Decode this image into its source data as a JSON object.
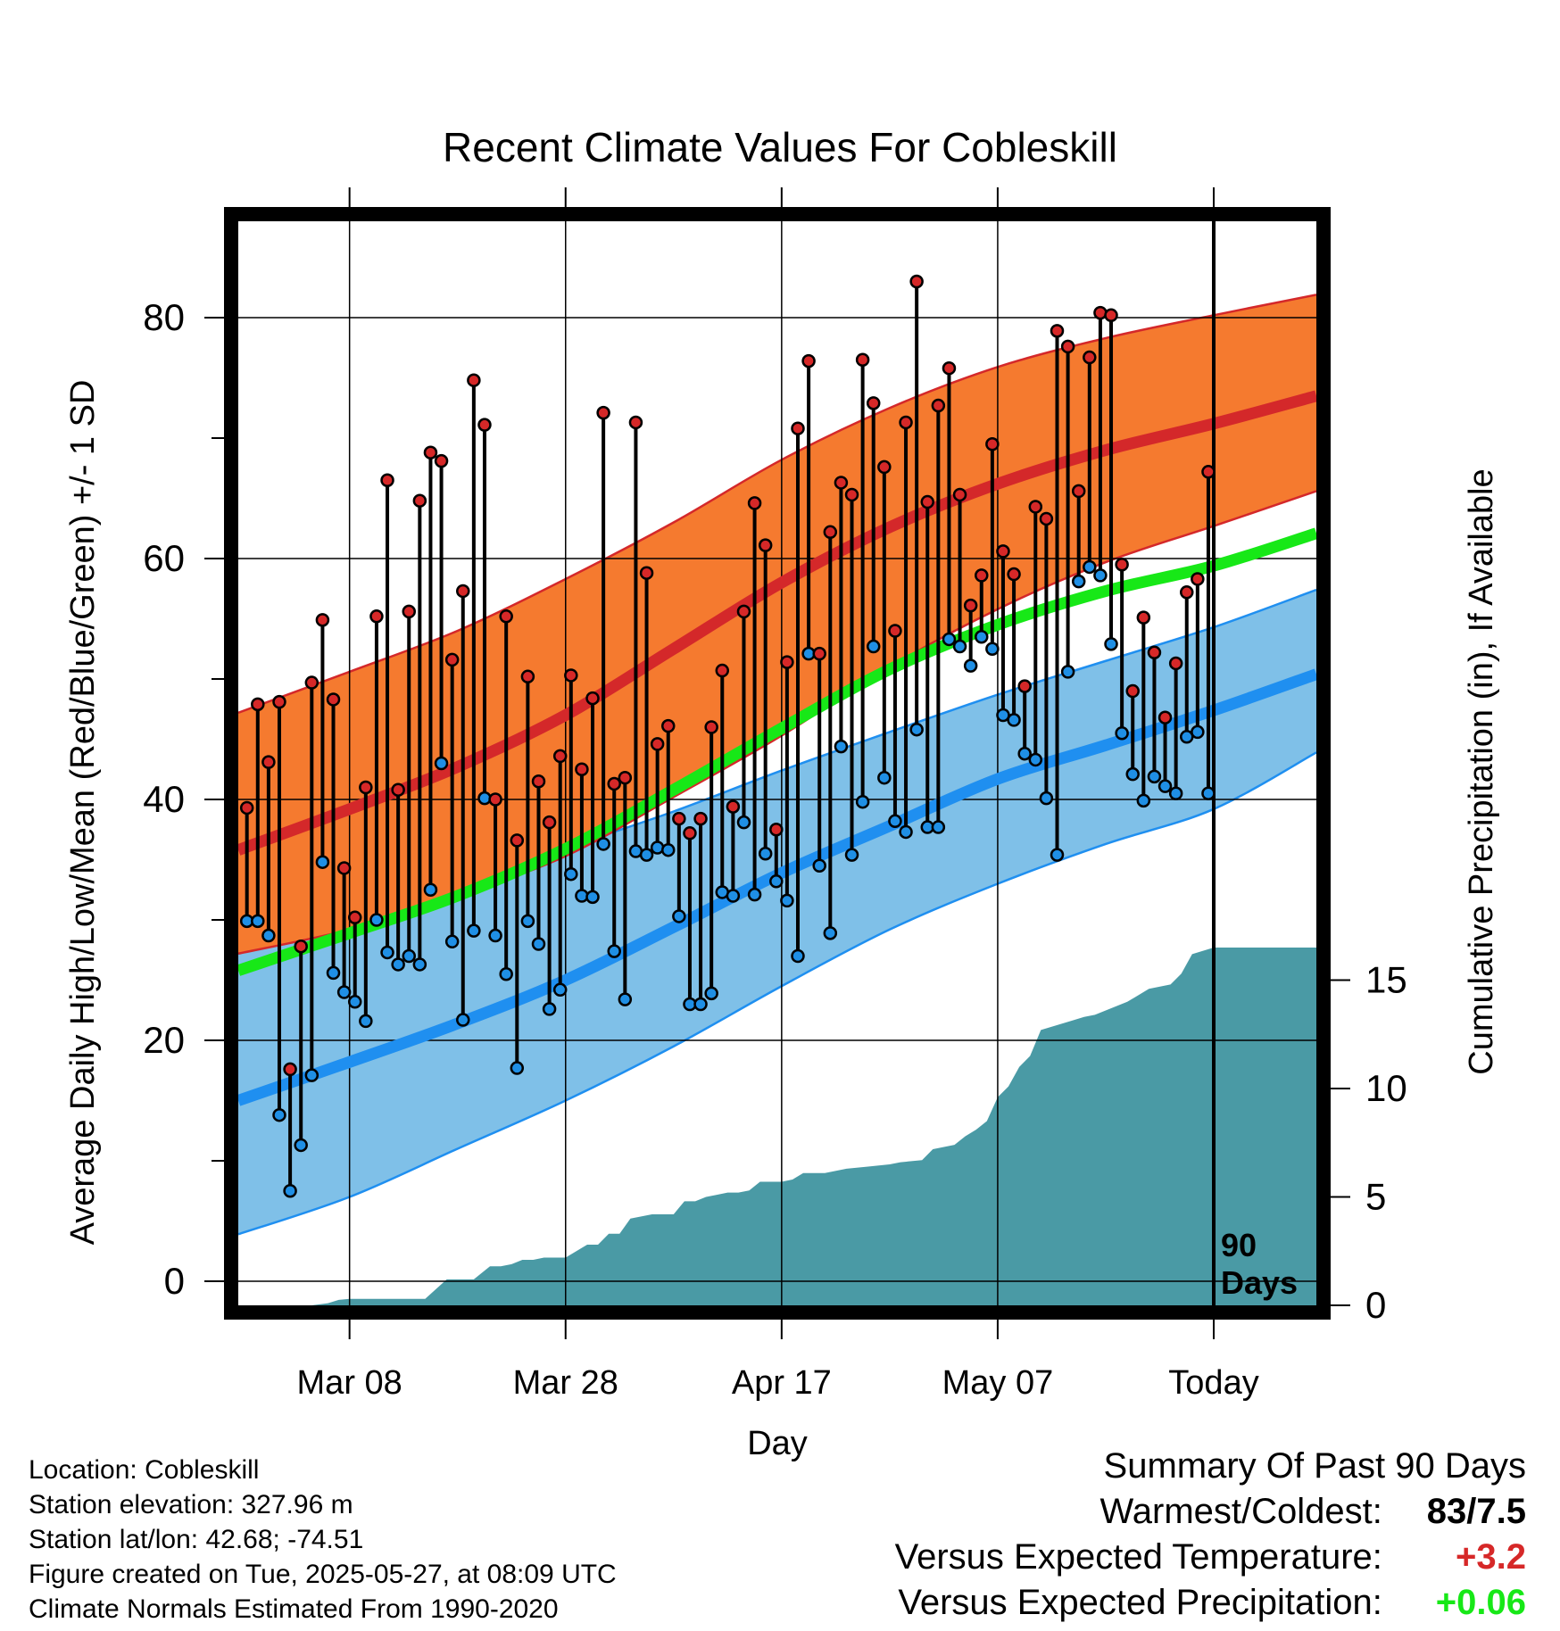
{
  "title": "Recent Climate Values For Cobleskill",
  "chart_data": {
    "type": "line",
    "title": "Recent Climate Values For Cobleskill",
    "xlabel": "Day",
    "ylabel": "Average Daily High/Low/Mean (Red/Blue/Green) +/- 1 SD",
    "y2label": "Cumulative Precipitation (in), If Available",
    "x_tick_labels": [
      "Mar 08",
      "Mar 28",
      "Apr 17",
      "May 07",
      "Today"
    ],
    "x_tick_days": [
      10,
      30,
      50,
      70,
      90
    ],
    "xlim": [
      -0.3,
      99.5
    ],
    "ylim": [
      -2,
      88
    ],
    "y_ticks": [
      0,
      20,
      40,
      60,
      80
    ],
    "y2lim": [
      0,
      50
    ],
    "y2_ticks": [
      0,
      5,
      10,
      15
    ],
    "today_day": 90,
    "today_label": [
      "90",
      "Days"
    ],
    "normals": {
      "day": [
        -0.3,
        10,
        20,
        30,
        40,
        50,
        60,
        70,
        80,
        90,
        99.5
      ],
      "mean_high": [
        35.8,
        39.2,
        42.7,
        47.0,
        52.5,
        58.0,
        62.6,
        66.2,
        69.0,
        71.2,
        73.5
      ],
      "high_upper": [
        47.2,
        50.6,
        54.0,
        58.3,
        63.0,
        68.2,
        72.5,
        75.9,
        78.3,
        80.2,
        81.9
      ],
      "high_lower": [
        27.2,
        29.2,
        32.0,
        35.3,
        40.2,
        45.3,
        51.0,
        55.8,
        59.7,
        62.7,
        65.6
      ],
      "mean": [
        25.8,
        28.9,
        32.0,
        35.9,
        40.8,
        45.9,
        50.8,
        54.5,
        57.3,
        59.4,
        62.1
      ],
      "mean_low": [
        15.0,
        18.2,
        21.4,
        25.0,
        29.4,
        33.9,
        37.8,
        41.7,
        44.5,
        47.4,
        50.4
      ],
      "low_upper": [
        27.2,
        29.6,
        32.3,
        35.9,
        39.0,
        42.4,
        45.6,
        48.7,
        51.5,
        54.3,
        57.4
      ],
      "low_lower": [
        3.9,
        7.0,
        11.0,
        15.0,
        19.5,
        24.5,
        29.2,
        33.0,
        36.3,
        39.2,
        43.9
      ]
    },
    "series": [
      {
        "name": "Daily High",
        "color": "#d62828",
        "values": [
          39.3,
          47.9,
          43.1,
          48.1,
          17.6,
          27.8,
          49.7,
          54.9,
          48.3,
          34.3,
          30.2,
          41.0,
          55.2,
          66.5,
          40.8,
          55.6,
          64.8,
          68.8,
          68.1,
          51.6,
          57.3,
          74.8,
          71.1,
          40.0,
          55.2,
          36.6,
          50.2,
          41.5,
          38.1,
          43.6,
          50.3,
          42.5,
          48.4,
          72.1,
          41.3,
          41.8,
          71.3,
          58.8,
          44.6,
          46.1,
          38.4,
          37.2,
          38.4,
          46.0,
          50.7,
          39.4,
          55.6,
          64.6,
          61.1,
          37.5,
          51.4,
          70.8,
          76.4,
          52.1,
          62.2,
          66.3,
          65.3,
          76.5,
          72.9,
          67.6,
          54.0,
          71.3,
          83.0,
          64.7,
          72.7,
          75.8,
          65.3,
          56.1,
          58.6,
          69.5,
          60.6,
          58.7,
          49.4,
          64.3,
          63.3,
          78.9,
          77.6,
          65.6,
          76.7,
          80.4,
          80.2,
          59.5,
          49.0,
          55.1,
          52.2,
          46.8,
          51.3,
          57.2,
          58.3,
          67.2
        ]
      },
      {
        "name": "Daily Low",
        "color": "#1f8fe5",
        "values": [
          29.9,
          29.9,
          28.7,
          13.8,
          7.5,
          11.3,
          17.1,
          34.8,
          25.6,
          24.0,
          23.2,
          21.6,
          30.0,
          27.3,
          26.3,
          27.0,
          26.3,
          32.5,
          43.0,
          28.2,
          21.7,
          29.1,
          40.1,
          28.7,
          25.5,
          17.7,
          29.9,
          28.0,
          22.6,
          24.2,
          33.8,
          32.0,
          31.9,
          36.3,
          27.4,
          23.4,
          35.7,
          35.4,
          36.0,
          35.8,
          30.3,
          23.0,
          23.0,
          23.9,
          32.3,
          32.0,
          38.1,
          32.1,
          35.5,
          33.2,
          31.6,
          27.0,
          52.1,
          34.5,
          28.9,
          44.4,
          35.4,
          39.8,
          52.7,
          41.8,
          38.2,
          37.3,
          45.8,
          37.7,
          37.7,
          53.3,
          52.7,
          51.1,
          53.5,
          52.5,
          47.0,
          46.6,
          43.8,
          43.3,
          40.1,
          35.4,
          50.6,
          58.1,
          59.3,
          58.6,
          52.9,
          45.5,
          42.1,
          39.9,
          41.9,
          41.1,
          40.5,
          45.2,
          45.6,
          40.5
        ]
      }
    ],
    "precip_cumulative": {
      "day": [
        -0.3,
        6.5,
        8,
        9,
        10,
        11,
        17,
        19,
        21.5,
        23,
        24,
        25,
        26,
        27,
        28,
        29,
        30,
        31,
        32,
        33,
        34,
        35,
        36,
        37,
        38,
        39,
        40,
        41,
        42,
        43,
        44,
        45,
        46,
        47,
        48,
        49,
        50,
        51,
        52,
        54,
        56,
        58,
        60,
        61,
        63,
        64,
        66,
        67,
        68,
        69,
        70,
        71,
        72,
        73,
        74,
        78,
        79,
        80,
        82,
        84,
        86,
        87,
        88,
        90,
        99.5
      ],
      "values": [
        0,
        0,
        0.1,
        0.25,
        0.3,
        0.3,
        0.3,
        1.2,
        1.2,
        1.8,
        1.8,
        1.9,
        2.1,
        2.1,
        2.2,
        2.2,
        2.2,
        2.5,
        2.8,
        2.8,
        3.3,
        3.3,
        4.0,
        4.1,
        4.2,
        4.2,
        4.2,
        4.8,
        4.8,
        5.0,
        5.1,
        5.2,
        5.2,
        5.3,
        5.7,
        5.7,
        5.7,
        5.8,
        6.1,
        6.1,
        6.3,
        6.4,
        6.5,
        6.6,
        6.7,
        7.2,
        7.4,
        7.8,
        8.1,
        8.5,
        9.6,
        10.1,
        11.0,
        11.5,
        12.7,
        13.3,
        13.4,
        13.6,
        14.0,
        14.6,
        14.8,
        15.3,
        16.2,
        16.5,
        16.5
      ]
    }
  },
  "info": {
    "lines": [
      "Location: Cobleskill",
      "Station elevation: 327.96 m",
      "Station lat/lon: 42.68; -74.51",
      "Figure created on Tue, 2025-05-27, at 08:09 UTC",
      "Climate Normals Estimated From 1990-2020"
    ]
  },
  "summary": {
    "heading": "Summary Of Past 90 Days",
    "warmest_label": "Warmest/Coldest:",
    "warmest_value": "83/7.5",
    "temp_label": "Versus Expected Temperature:",
    "temp_value": "+3.2",
    "temp_color": "#d62828",
    "precip_label": "Versus Expected Precipitation:",
    "precip_value": "+0.06",
    "precip_color": "#17e817"
  },
  "colors": {
    "high_band": "#f57a2f",
    "high_mean": "#d4282a",
    "low_band": "#7fc0e8",
    "low_mean": "#1f8ff0",
    "mean_line": "#17e817",
    "precip": "#4a9aa5"
  }
}
